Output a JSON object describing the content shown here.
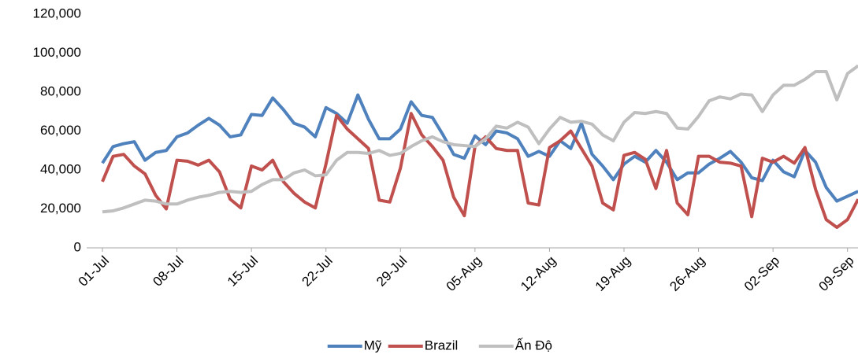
{
  "chart_data": {
    "type": "line",
    "categories": [
      "01-Jul",
      null,
      null,
      null,
      null,
      null,
      null,
      "08-Jul",
      null,
      null,
      null,
      null,
      null,
      null,
      "15-Jul",
      null,
      null,
      null,
      null,
      null,
      null,
      "22-Jul",
      null,
      null,
      null,
      null,
      null,
      null,
      "29-Jul",
      null,
      null,
      null,
      null,
      null,
      null,
      "05-Aug",
      null,
      null,
      null,
      null,
      null,
      null,
      "12-Aug",
      null,
      null,
      null,
      null,
      null,
      null,
      "19-Aug",
      null,
      null,
      null,
      null,
      null,
      null,
      "26-Aug",
      null,
      null,
      null,
      null,
      null,
      null,
      "02-Sep",
      null,
      null,
      null,
      null,
      null,
      null,
      "09-Sep",
      null
    ],
    "series": [
      {
        "name": "Mỹ",
        "color": "#4f81bd",
        "values": [
          43500,
          52000,
          53500,
          54500,
          45000,
          49000,
          50000,
          57000,
          59000,
          63000,
          66500,
          63000,
          57000,
          58000,
          68500,
          68000,
          77000,
          71000,
          64000,
          62000,
          57000,
          72000,
          69000,
          64000,
          78500,
          66000,
          56000,
          56000,
          61000,
          75000,
          68000,
          67000,
          58000,
          48000,
          46000,
          57500,
          53000,
          60000,
          59000,
          56000,
          47000,
          49500,
          47000,
          55000,
          51000,
          64000,
          48000,
          42000,
          35000,
          43000,
          47000,
          44000,
          50000,
          44000,
          35000,
          38500,
          38500,
          43000,
          46000,
          49500,
          44000,
          36000,
          34500,
          45000,
          39000,
          36500,
          50000,
          44000,
          31000,
          24000,
          26500,
          29000
        ]
      },
      {
        "name": "Brazil",
        "color": "#c0504d",
        "values": [
          34000,
          47000,
          48000,
          42000,
          38000,
          27000,
          20000,
          45000,
          44500,
          42500,
          45000,
          39000,
          25000,
          20500,
          42000,
          40000,
          45000,
          34000,
          28000,
          23500,
          20500,
          43000,
          68000,
          61000,
          56000,
          51000,
          24500,
          23500,
          41000,
          69000,
          58000,
          52000,
          45000,
          26000,
          16500,
          52000,
          57000,
          51000,
          50000,
          50000,
          23000,
          22000,
          51500,
          55000,
          60000,
          51000,
          42000,
          23000,
          19500,
          47500,
          49000,
          45500,
          30500,
          50000,
          23000,
          17000,
          47000,
          47000,
          44000,
          43500,
          42000,
          16000,
          46000,
          44000,
          47000,
          43500,
          51500,
          30000,
          14500,
          10500,
          14500,
          25000
        ]
      },
      {
        "name": "Ấn Độ",
        "color": "#bfbfbf",
        "values": [
          18500,
          19000,
          20500,
          22500,
          24500,
          24000,
          22500,
          22500,
          24500,
          26000,
          27000,
          28500,
          29000,
          28500,
          29000,
          32500,
          35000,
          35000,
          38500,
          40000,
          37000,
          37500,
          45000,
          49000,
          49000,
          48500,
          50000,
          47500,
          48500,
          52000,
          55000,
          57000,
          54500,
          53000,
          52500,
          52000,
          56000,
          62500,
          61500,
          64500,
          62000,
          53500,
          61000,
          67000,
          64500,
          65000,
          63500,
          58000,
          55000,
          64500,
          69500,
          69000,
          70000,
          69000,
          61500,
          61000,
          67500,
          75500,
          77500,
          76500,
          79000,
          78500,
          70000,
          78500,
          83500,
          83500,
          86500,
          90500,
          90500,
          76000,
          89500,
          93500
        ]
      }
    ],
    "ylim": [
      0,
      120000
    ],
    "yticks": [
      0,
      {
        "value": 20000,
        "label": "20,000"
      },
      {
        "value": 40000,
        "label": "40,000"
      },
      {
        "value": 60000,
        "label": "60,000"
      },
      {
        "value": 80000,
        "label": "80,000"
      },
      {
        "value": 100000,
        "label": "100,000"
      },
      {
        "value": 120000,
        "label": "120,000"
      }
    ],
    "grid": false,
    "legend": "bottom"
  }
}
